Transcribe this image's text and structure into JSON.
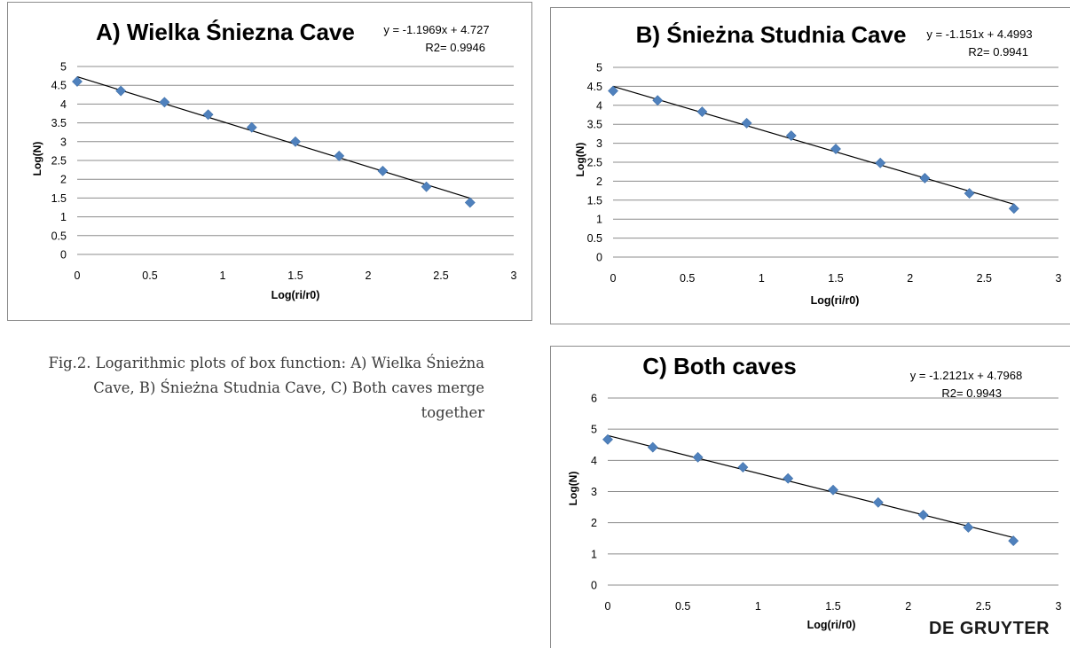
{
  "caption": "Fig.2. Logarithmic plots of box function: A) Wielka Śnieżna Cave, B) Śnieżna Studnia Cave, C) Both caves merge together",
  "publisher": "DE GRUYTER",
  "colors": {
    "marker": "#4f81bd",
    "marker_stroke": "#3f6fa8",
    "trendline": "#000000",
    "grid": "#8c8c8c"
  },
  "chart_data": [
    {
      "type": "scatter",
      "title": "A) Wielka Śniezna Cave",
      "equation": "y = -1.1969x + 4.727",
      "r2_label": "R2= 0.9946",
      "xlabel": "Log(ri/r0)",
      "ylabel": "Log(N)",
      "xlim": [
        0,
        3
      ],
      "ylim": [
        0,
        5
      ],
      "xticks": [
        "0",
        "0.5",
        "1",
        "1.5",
        "2",
        "2.5",
        "3"
      ],
      "yticks": [
        "0",
        "0.5",
        "1",
        "1.5",
        "2",
        "2.5",
        "3",
        "3.5",
        "4",
        "4.5",
        "5"
      ],
      "trendline": {
        "slope": -1.1969,
        "intercept": 4.727
      },
      "x": [
        0,
        0.3,
        0.6,
        0.9,
        1.2,
        1.5,
        1.8,
        2.1,
        2.4,
        2.7
      ],
      "y": [
        4.6,
        4.35,
        4.05,
        3.72,
        3.38,
        3.0,
        2.62,
        2.22,
        1.8,
        1.38
      ]
    },
    {
      "type": "scatter",
      "title": "B) Śnieżna Studnia Cave",
      "equation": "y = -1.151x + 4.4993",
      "r2_label": "R2= 0.9941",
      "xlabel": "Log(ri/r0)",
      "ylabel": "Log(N)",
      "xlim": [
        0,
        3
      ],
      "ylim": [
        0,
        5
      ],
      "xticks": [
        "0",
        "0.5",
        "1",
        "1.5",
        "2",
        "2.5",
        "3"
      ],
      "yticks": [
        "0",
        "0.5",
        "1",
        "1.5",
        "2",
        "2.5",
        "3",
        "3.5",
        "4",
        "4.5",
        "5"
      ],
      "trendline": {
        "slope": -1.151,
        "intercept": 4.4993
      },
      "x": [
        0,
        0.3,
        0.6,
        0.9,
        1.2,
        1.5,
        1.8,
        2.1,
        2.4,
        2.7
      ],
      "y": [
        4.38,
        4.13,
        3.83,
        3.53,
        3.2,
        2.85,
        2.48,
        2.08,
        1.68,
        1.28
      ]
    },
    {
      "type": "scatter",
      "title": "C) Both caves",
      "equation": "y = -1.2121x + 4.7968",
      "r2_label": "R2= 0.9943",
      "xlabel": "Log(ri/r0)",
      "ylabel": "Log(N)",
      "xlim": [
        0,
        3
      ],
      "ylim": [
        0,
        6
      ],
      "xticks": [
        "0",
        "0.5",
        "1",
        "1.5",
        "2",
        "2.5",
        "3"
      ],
      "yticks": [
        "0",
        "1",
        "2",
        "3",
        "4",
        "5",
        "6"
      ],
      "trendline": {
        "slope": -1.2121,
        "intercept": 4.7968
      },
      "x": [
        0,
        0.3,
        0.6,
        0.9,
        1.2,
        1.5,
        1.8,
        2.1,
        2.4,
        2.7
      ],
      "y": [
        4.67,
        4.42,
        4.1,
        3.78,
        3.42,
        3.05,
        2.65,
        2.25,
        1.85,
        1.42
      ]
    }
  ]
}
